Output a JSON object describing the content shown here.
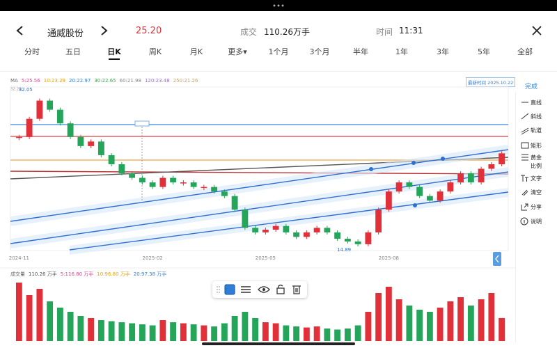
{
  "header": {
    "name": "通威股份",
    "price": "25.20",
    "volume_label": "成交",
    "volume": "110.26万手",
    "time_label": "时间",
    "time": "11:31"
  },
  "tabs": [
    "分时",
    "五日",
    "日K",
    "周K",
    "月K",
    "更多▾",
    "1个月",
    "3个月",
    "半年",
    "1年",
    "3年",
    "5年",
    "全部"
  ],
  "active_tab": 2,
  "ma_legend": {
    "label": "MA",
    "items": [
      {
        "text": "5:25.56",
        "color": "#d9488b"
      },
      {
        "text": "10:23.29",
        "color": "#e8a200"
      },
      {
        "text": "20:22.97",
        "color": "#2f7fd8"
      },
      {
        "text": "30:22.65",
        "color": "#3aa64a"
      },
      {
        "text": "60:21.98",
        "color": "#888888"
      },
      {
        "text": "120:23.48",
        "color": "#9a6dd1"
      },
      {
        "text": "250:21.26",
        "color": "#c0a070"
      }
    ]
  },
  "latest": "最新时间 2025.10.22",
  "done": "完成",
  "tools": [
    "直线",
    "斜线",
    "轨道",
    "矩形",
    "黄金比例",
    "文字",
    "清空",
    "分享",
    "说明"
  ],
  "volume_legend": {
    "label": "成交量",
    "items": [
      {
        "text": "110.26 万手",
        "color": "#555555"
      },
      {
        "text": "5:116.80 万手",
        "color": "#d9488b"
      },
      {
        "text": "10:96.80 万手",
        "color": "#e8a200"
      },
      {
        "text": "20:97.38 万手",
        "color": "#2f7fd8"
      }
    ]
  },
  "chart_data": [
    {
      "type": "candlestick",
      "categories": [
        "2024-11",
        null,
        null,
        null,
        null,
        null,
        null,
        null,
        null,
        null,
        null,
        null,
        null,
        "2025-02",
        null,
        null,
        null,
        null,
        null,
        null,
        null,
        null,
        null,
        null,
        "2025-05",
        null,
        null,
        null,
        null,
        null,
        null,
        null,
        null,
        null,
        null,
        null,
        "2025-08",
        null,
        null,
        null,
        null,
        null,
        null,
        null,
        null,
        null,
        null,
        null
      ],
      "values": [
        27,
        29,
        31,
        30,
        28.5,
        27,
        26,
        26.5,
        25,
        24,
        23,
        22.5,
        22,
        21.5,
        22.5,
        22,
        22,
        21.5,
        21.5,
        21,
        20.5,
        19,
        17,
        16.5,
        16.8,
        17.2,
        16.5,
        16,
        16.5,
        17,
        16.5,
        15.8,
        15.5,
        15.2,
        16.5,
        19,
        21,
        22,
        21.5,
        20.5,
        20,
        21,
        22,
        23,
        22,
        23.5,
        24,
        25.2
      ],
      "up_color": "#e0303a",
      "down_color": "#25a55a",
      "ylim": [
        14.5,
        32.5
      ],
      "yticks": [
        32.28
      ],
      "annotations": [
        {
          "text": "32.05",
          "value": 32.05,
          "index": 2
        },
        {
          "text": "14.89",
          "value": 14.89,
          "index": 33
        }
      ]
    },
    {
      "type": "bar",
      "values": [
        280,
        220,
        250,
        190,
        160,
        140,
        120,
        110,
        100,
        95,
        90,
        85,
        80,
        75,
        100,
        90,
        85,
        80,
        75,
        70,
        85,
        120,
        140,
        110,
        90,
        85,
        75,
        70,
        65,
        70,
        60,
        55,
        60,
        75,
        140,
        230,
        260,
        200,
        170,
        150,
        140,
        160,
        190,
        210,
        170,
        200,
        230,
        110.26
      ],
      "ylim": [
        0,
        300
      ]
    }
  ]
}
